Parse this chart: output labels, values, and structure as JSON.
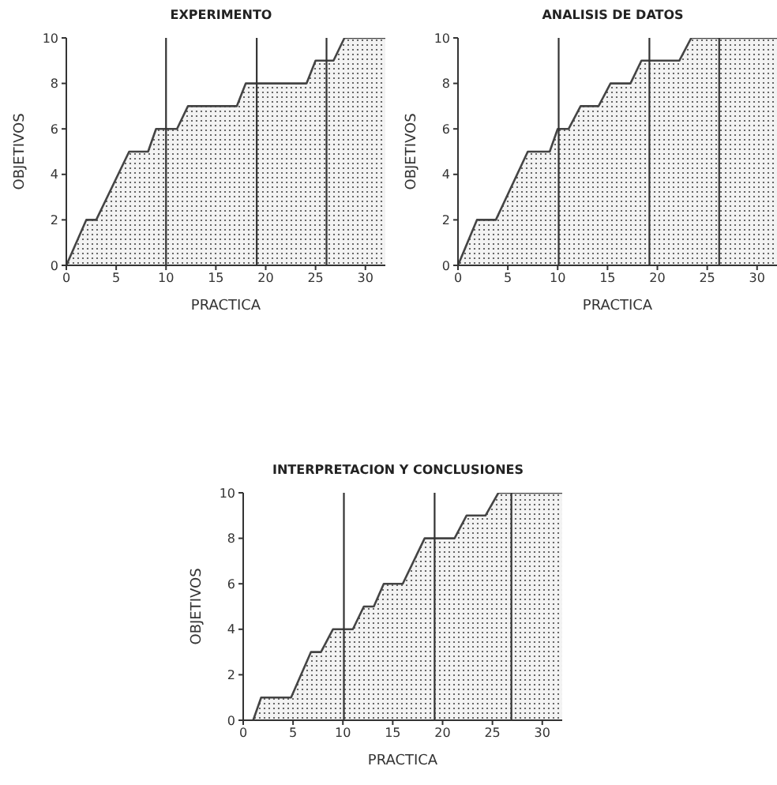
{
  "chart_data": [
    {
      "type": "area",
      "title": "EXPERIMENTO",
      "xlabel": "PRACTICA",
      "ylabel": "OBJETIVOS",
      "xlim": [
        0,
        32
      ],
      "xticks": [
        0,
        5,
        10,
        15,
        20,
        25,
        30
      ],
      "ylim": [
        0,
        10
      ],
      "yticks": [
        0,
        2,
        4,
        6,
        8,
        10
      ],
      "series": [
        {
          "color": "#444444",
          "x": [
            0,
            2,
            3,
            6.3,
            8.2,
            9,
            11.1,
            12.2,
            17.1,
            18,
            24.1,
            25,
            26.8,
            27.9,
            32
          ],
          "values": [
            0,
            2,
            2,
            5,
            5,
            6,
            6,
            7,
            7,
            8,
            8,
            9,
            9,
            10,
            10
          ]
        }
      ],
      "ref_lines": [
        {
          "axis": "x",
          "value": 10
        },
        {
          "axis": "x",
          "value": 19.1
        },
        {
          "axis": "x",
          "value": 26.1
        }
      ]
    },
    {
      "type": "area",
      "title": "ANALISIS DE DATOS",
      "xlabel": "PRACTICA",
      "ylabel": "OBJETIVOS",
      "xlim": [
        0,
        32
      ],
      "xticks": [
        0,
        5,
        10,
        15,
        20,
        25,
        30
      ],
      "ylim": [
        0,
        10
      ],
      "yticks": [
        0,
        2,
        4,
        6,
        8,
        10
      ],
      "series": [
        {
          "color": "#444444",
          "x": [
            0,
            1.9,
            3.8,
            7,
            9.2,
            10,
            11.1,
            12.3,
            14.1,
            15.3,
            17.3,
            18.4,
            22.2,
            23.4,
            32
          ],
          "values": [
            0,
            2,
            2,
            5,
            5,
            6,
            6,
            7,
            7,
            8,
            8,
            9,
            9,
            10,
            10
          ]
        }
      ],
      "ref_lines": [
        {
          "axis": "x",
          "value": 10.1
        },
        {
          "axis": "x",
          "value": 19.2
        },
        {
          "axis": "x",
          "value": 26.2
        }
      ]
    },
    {
      "type": "area",
      "title": "INTERPRETACION Y CONCLUSIONES",
      "xlabel": "PRACTICA",
      "ylabel": "OBJETIVOS",
      "xlim": [
        0,
        32
      ],
      "xticks": [
        0,
        5,
        10,
        15,
        20,
        25,
        30
      ],
      "ylim": [
        0,
        10
      ],
      "yticks": [
        0,
        2,
        4,
        6,
        8,
        10
      ],
      "series": [
        {
          "color": "#444444",
          "x": [
            1,
            1.8,
            4.8,
            6.8,
            7.8,
            9,
            11,
            12.1,
            13.1,
            14.1,
            16,
            18.2,
            21.2,
            22.4,
            24.3,
            25.6,
            32
          ],
          "values": [
            0,
            1,
            1,
            3,
            3,
            4,
            4,
            5,
            5,
            6,
            6,
            8,
            8,
            9,
            9,
            10,
            10
          ]
        }
      ],
      "ref_lines": [
        {
          "axis": "x",
          "value": 10.1
        },
        {
          "axis": "x",
          "value": 19.2
        },
        {
          "axis": "x",
          "value": 26.9
        }
      ]
    }
  ]
}
